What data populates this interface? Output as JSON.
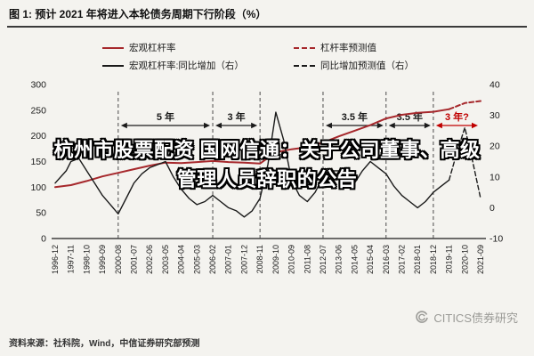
{
  "header": {
    "title": "图 1: 预计 2021 年将进入本轮债务周期下行阶段（%）"
  },
  "overlay": {
    "lines": [
      "杭州市股票配资 国网信通：关于公司董事、高级",
      "管理人员辞职的公告"
    ]
  },
  "footer": {
    "source": "资料来源：社科院，Wind，中信证券研究部预测",
    "watermark": "CITICS债券研究"
  },
  "legend": {
    "rows": [
      [
        {
          "label": "宏观杠杆率",
          "color": "#a6282c",
          "dashed": false
        },
        {
          "label": "杠杆率预测值",
          "color": "#a6282c",
          "dashed": true
        }
      ],
      [
        {
          "label": "宏观杠杆率:同比增加（右）",
          "color": "#1a1a1a",
          "dashed": false
        },
        {
          "label": "同比增加预测值（右）",
          "color": "#1a1a1a",
          "dashed": true
        }
      ]
    ]
  },
  "chart_data": {
    "type": "line",
    "title": "预计 2021 年将进入本轮债务周期下行阶段（%）",
    "xlabel": "",
    "ylabel": "",
    "x_labels": [
      "1996-12",
      "1997-11",
      "1998-10",
      "1999-09",
      "2000-08",
      "2001-07",
      "2002-06",
      "2003-05",
      "2004-04",
      "2005-03",
      "2006-02",
      "2007-01",
      "2007-12",
      "2008-11",
      "2009-10",
      "2010-09",
      "2011-08",
      "2012-07",
      "2013-06",
      "2014-05",
      "2015-04",
      "2016-03",
      "2017-02",
      "2018-01",
      "2018-12",
      "2019-11",
      "2020-10",
      "2021-09"
    ],
    "left_axis": {
      "min": 0,
      "max": 300,
      "ticks": [
        0,
        50,
        100,
        150,
        200,
        250,
        300
      ]
    },
    "right_axis": {
      "min": -10,
      "max": 40,
      "ticks": [
        -10,
        0,
        10,
        20,
        30,
        40
      ]
    },
    "series": [
      {
        "name": "宏观杠杆率",
        "pred_name": "杠杆率预测值",
        "axis": "left",
        "color": "#a6282c",
        "width": 2,
        "pred_from": 25,
        "values": [
          100,
          104,
          112,
          121,
          128,
          135,
          142,
          148,
          147,
          149,
          151,
          149,
          148,
          146,
          168,
          174,
          178,
          187,
          199,
          210,
          221,
          234,
          241,
          245,
          247,
          252,
          264,
          268
        ]
      },
      {
        "name": "宏观杠杆率:同比增加（右）",
        "pred_name": "同比增加预测值（右）",
        "axis": "right",
        "color": "#1a1a1a",
        "width": 1.4,
        "pred_from": 50,
        "x": [
          0,
          0.7,
          1,
          1.5,
          2,
          2.5,
          3,
          3.5,
          4,
          4.5,
          5,
          5.5,
          6,
          6.5,
          7,
          7.5,
          8,
          8.5,
          9,
          9.5,
          10,
          10.5,
          11,
          11.5,
          12,
          12.5,
          13,
          13.5,
          14,
          14.5,
          15,
          15.5,
          16,
          16.5,
          17,
          17.5,
          18,
          18.5,
          19,
          19.5,
          20,
          20.5,
          21,
          21.5,
          22,
          22.5,
          23,
          23.5,
          24,
          24.5,
          25,
          25.5,
          26,
          26.5,
          27
        ],
        "values": [
          8,
          12,
          15,
          16,
          12,
          8,
          4,
          1,
          -2,
          3,
          8,
          11,
          13,
          14,
          15,
          10,
          6,
          3,
          1,
          2,
          4,
          2,
          0,
          -1,
          -3,
          -1,
          3,
          14,
          31,
          22,
          9,
          4,
          2,
          5,
          10,
          12,
          12,
          9,
          8,
          12,
          15,
          13,
          11,
          7,
          4,
          2,
          0,
          2,
          5,
          7,
          9,
          18,
          26,
          15,
          3
        ]
      }
    ],
    "vlines": [
      4,
      10,
      13,
      17,
      21,
      24
    ],
    "annotations": [
      {
        "label": "5 年",
        "from": 4,
        "to": 10,
        "color": "#1a1a1a"
      },
      {
        "label": "3 年",
        "from": 10,
        "to": 13,
        "color": "#1a1a1a"
      },
      {
        "label": "3.5 年",
        "from": 17,
        "to": 21,
        "color": "#1a1a1a"
      },
      {
        "label": "3.5 年",
        "from": 21,
        "to": 24,
        "color": "#1a1a1a"
      },
      {
        "label": "3 年?",
        "from": 24,
        "to": 27,
        "color": "#c00000"
      }
    ]
  }
}
